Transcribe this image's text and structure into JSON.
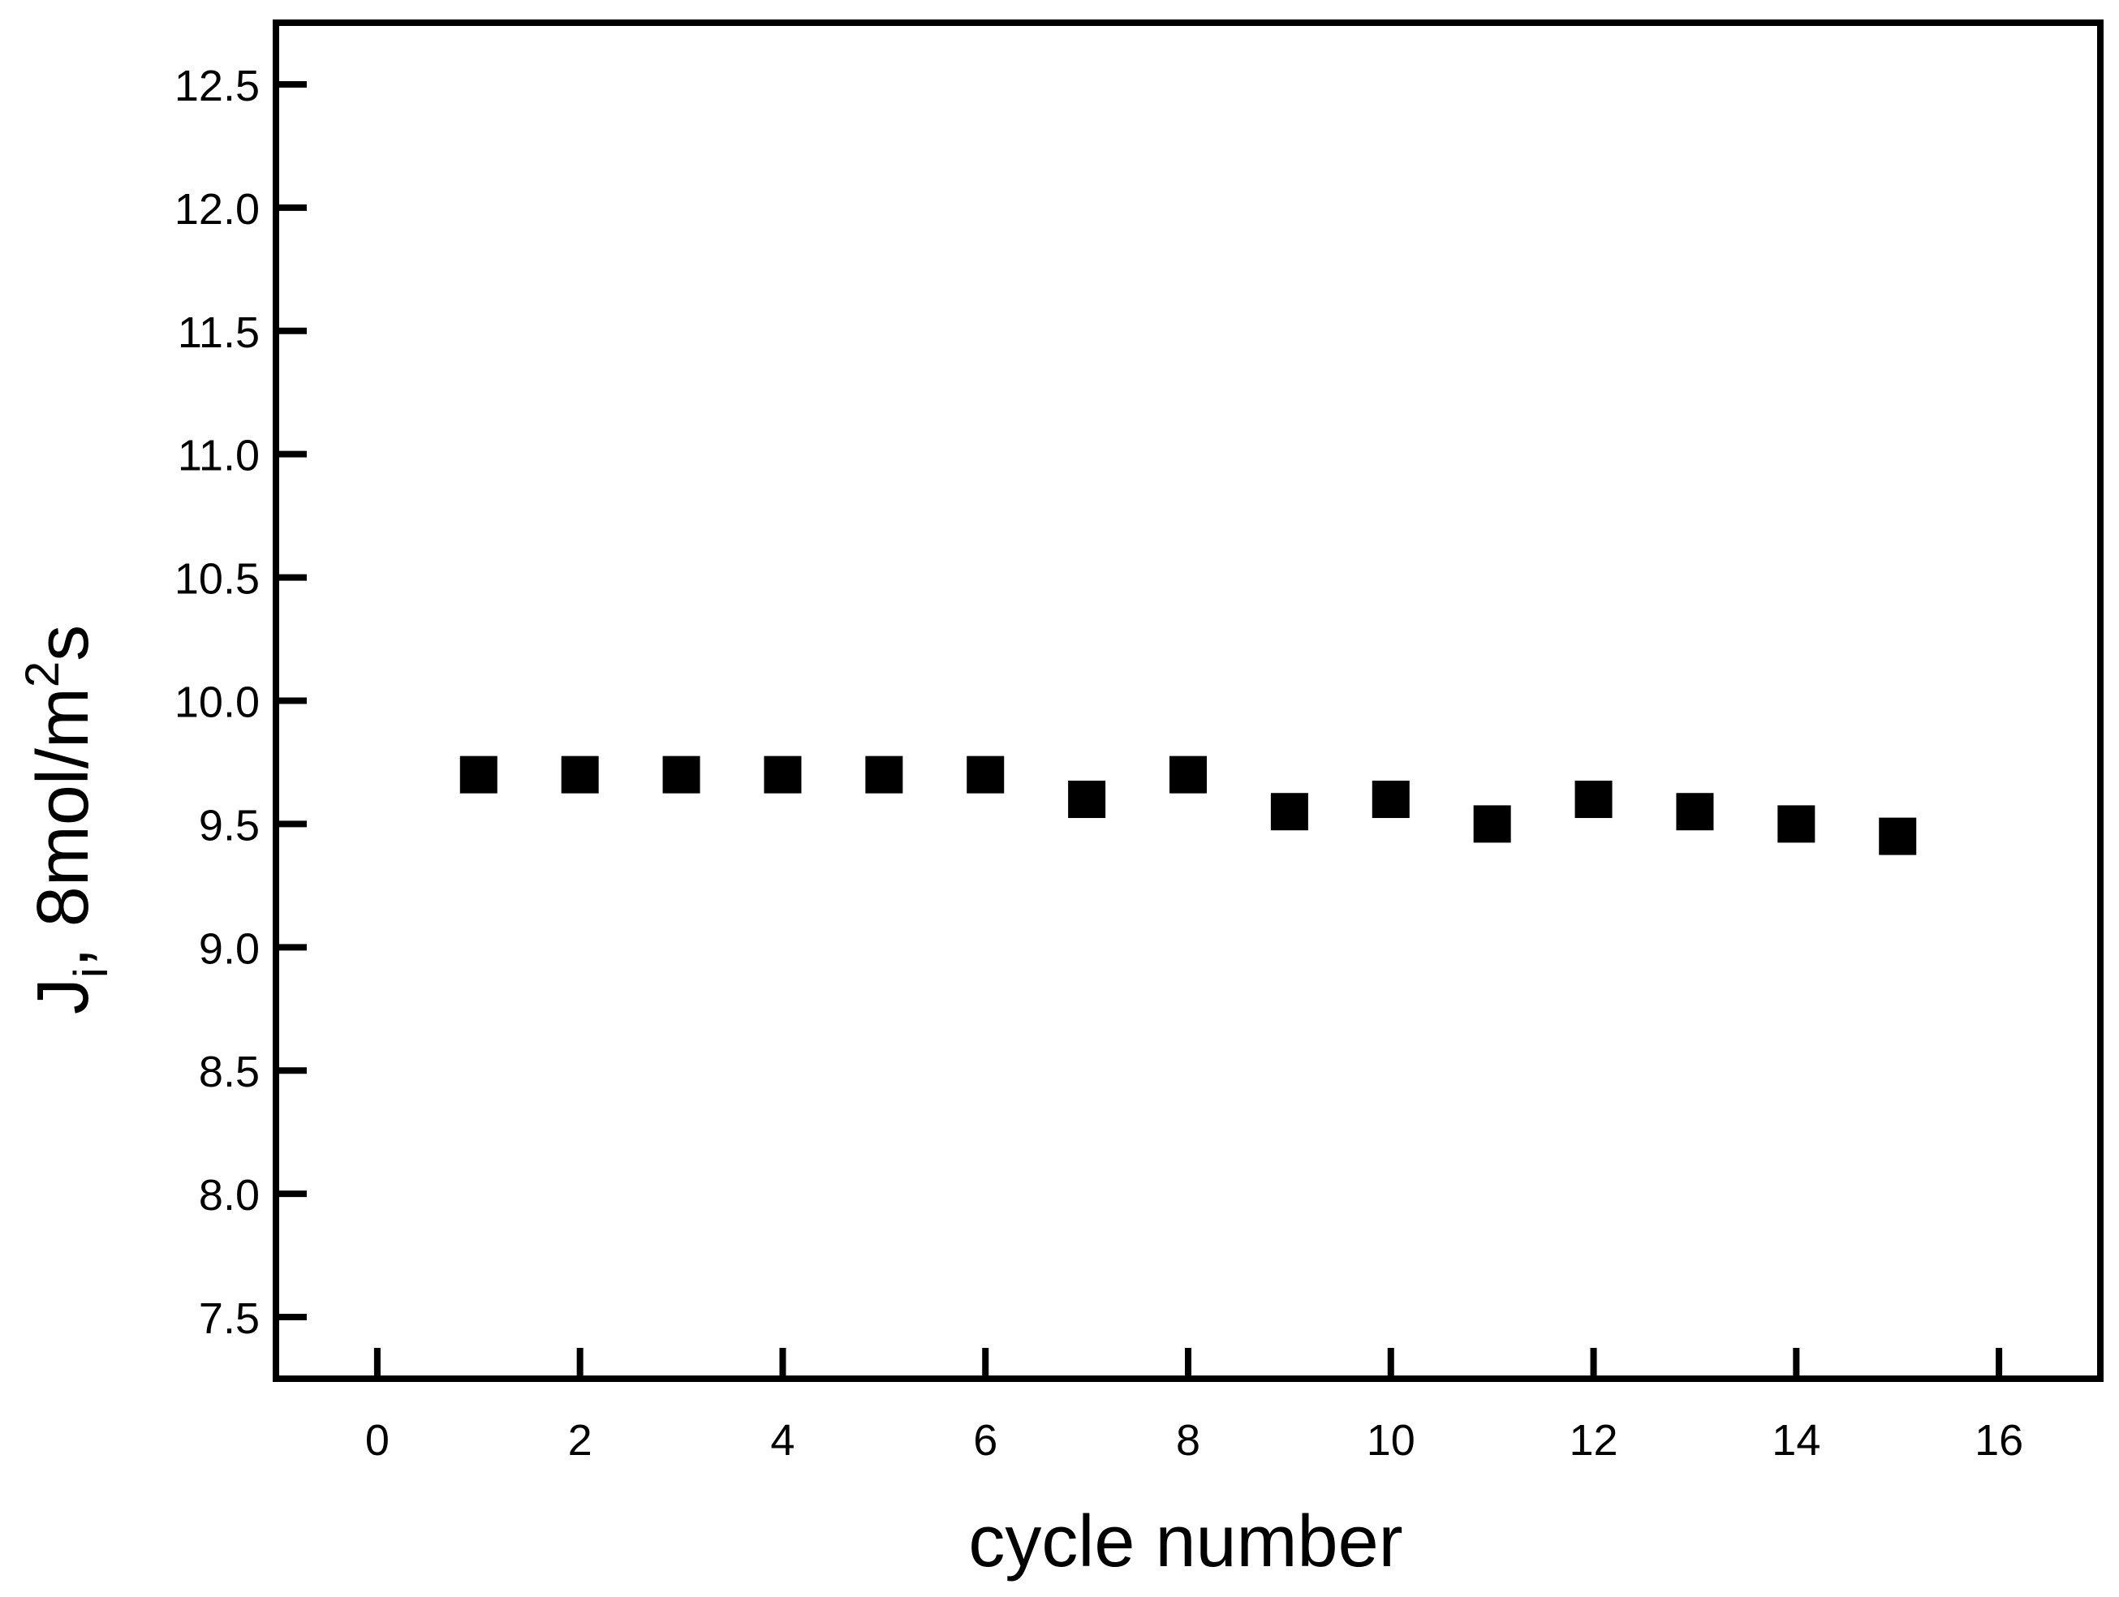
{
  "chart_data": {
    "type": "scatter",
    "title": "",
    "xlabel": "cycle number",
    "ylabel": {
      "base": "J",
      "subscript": "i",
      "middle": ", 8mol/m",
      "superscript": "2",
      "end": "s"
    },
    "xlim": [
      -1,
      17
    ],
    "ylim": [
      7.25,
      12.75
    ],
    "xticks": [
      0,
      2,
      4,
      6,
      8,
      10,
      12,
      14,
      16
    ],
    "xtick_labels": [
      "0",
      "2",
      "4",
      "6",
      "8",
      "10",
      "12",
      "14",
      "16"
    ],
    "yticks": [
      7.5,
      8.0,
      8.5,
      9.0,
      9.5,
      10.0,
      10.5,
      11.0,
      11.5,
      12.0,
      12.5
    ],
    "ytick_labels": [
      "7.5",
      "8.0",
      "8.5",
      "9.0",
      "9.5",
      "10.0",
      "10.5",
      "11.0",
      "11.5",
      "12.0",
      "12.5"
    ],
    "grid": false,
    "marker": "filled-square",
    "series": [
      {
        "x": [
          1,
          2,
          3,
          4,
          5,
          6,
          7,
          8,
          9,
          10,
          11,
          12,
          13,
          14,
          15
        ],
        "y": [
          9.7,
          9.7,
          9.7,
          9.7,
          9.7,
          9.7,
          9.6,
          9.7,
          9.55,
          9.6,
          9.5,
          9.6,
          9.55,
          9.5,
          9.45
        ],
        "color": "#000000"
      }
    ]
  }
}
